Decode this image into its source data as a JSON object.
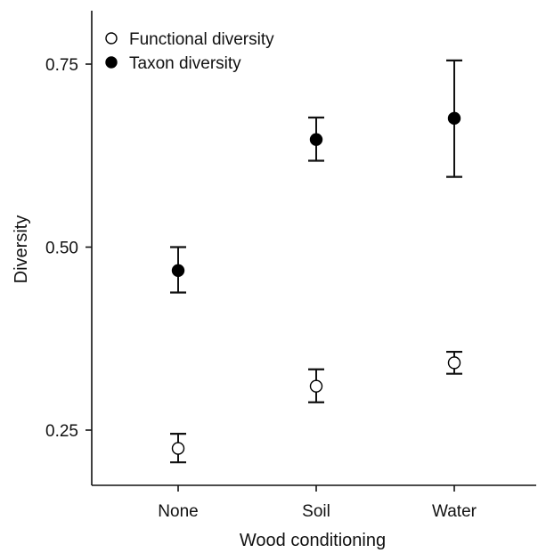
{
  "chart_data": {
    "type": "scatter",
    "xlabel": "Wood conditioning",
    "ylabel": "Diversity",
    "categories": [
      "None",
      "Soil",
      "Water"
    ],
    "yticks": [
      "0.25",
      "0.50",
      "0.75"
    ],
    "ytick_values": [
      0.25,
      0.5,
      0.75
    ],
    "ylim": [
      0.17,
      0.83
    ],
    "grid": false,
    "legend_position": "top-left",
    "series": [
      {
        "name": "Functional diversity",
        "marker": "open-circle",
        "values": [
          0.225,
          0.31,
          0.342
        ],
        "error_low": [
          0.206,
          0.288,
          0.327
        ],
        "error_high": [
          0.245,
          0.333,
          0.357
        ]
      },
      {
        "name": "Taxon diversity",
        "marker": "filled-circle",
        "values": [
          0.468,
          0.647,
          0.676
        ],
        "error_low": [
          0.438,
          0.618,
          0.596
        ],
        "error_high": [
          0.5,
          0.677,
          0.755
        ]
      }
    ],
    "colors": {
      "axis": "#111111",
      "marker_filled": "#000000",
      "marker_open_fill": "#ffffff"
    }
  }
}
